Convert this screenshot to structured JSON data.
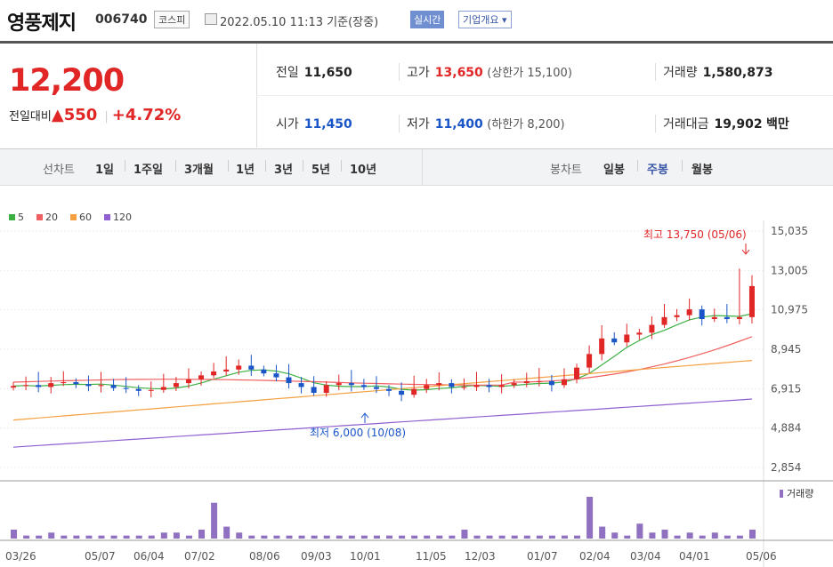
{
  "header": {
    "name": "영풍제지",
    "code": "006740",
    "market": "코스피",
    "datetime": "2022.05.10 11:13 기준(장중)",
    "realtime": "실시간",
    "overview": "기업개요"
  },
  "price": {
    "current": "12,200",
    "change_label": "전일대비",
    "change_amount": "550",
    "change_pct": "+4.72%"
  },
  "stats": {
    "prev_label": "전일",
    "prev": "11,650",
    "high_label": "고가",
    "high": "13,650",
    "upper_label": "(상한가 15,100)",
    "volume_label": "거래량",
    "volume": "1,580,873",
    "open_label": "시가",
    "open": "11,450",
    "low_label": "저가",
    "low": "11,400",
    "lower_label": "(하한가 8,200)",
    "amount_label": "거래대금",
    "amount": "19,902",
    "amount_unit": "백만"
  },
  "period_bar": {
    "line_label": "선차트",
    "line_items": [
      "1일",
      "1주일",
      "3개월",
      "1년",
      "3년",
      "5년",
      "10년"
    ],
    "candle_label": "봉차트",
    "candle_items": [
      "일봉",
      "주봉",
      "월봉"
    ],
    "selected": "주봉"
  },
  "chart_data": {
    "type": "candlestick",
    "legend": [
      "5",
      "20",
      "60",
      "120"
    ],
    "colors": {
      "ma5": "#3cb043",
      "ma20": "#f06060",
      "ma60": "#f5a040",
      "ma120": "#9060d0",
      "up": "#e12626",
      "down": "#1a55c8",
      "vol": "#9070c0"
    },
    "y_ticks": [
      15035,
      13005,
      10975,
      8945,
      6915,
      4884,
      2854
    ],
    "y_tick_labels": [
      "15,035",
      "13,005",
      "10,975",
      "8,945",
      "6,915",
      "4,884",
      "2,854"
    ],
    "x_labels": [
      "03/26",
      "05/07",
      "06/04",
      "07/02",
      "08/06",
      "09/03",
      "10/01",
      "11/05",
      "12/03",
      "01/07",
      "02/04",
      "03/04",
      "04/01",
      "05/06"
    ],
    "high_annotation": "최고 13,750 (05/06)",
    "low_annotation": "최저 6,000 (10/08)",
    "volume_label": "거래량"
  }
}
